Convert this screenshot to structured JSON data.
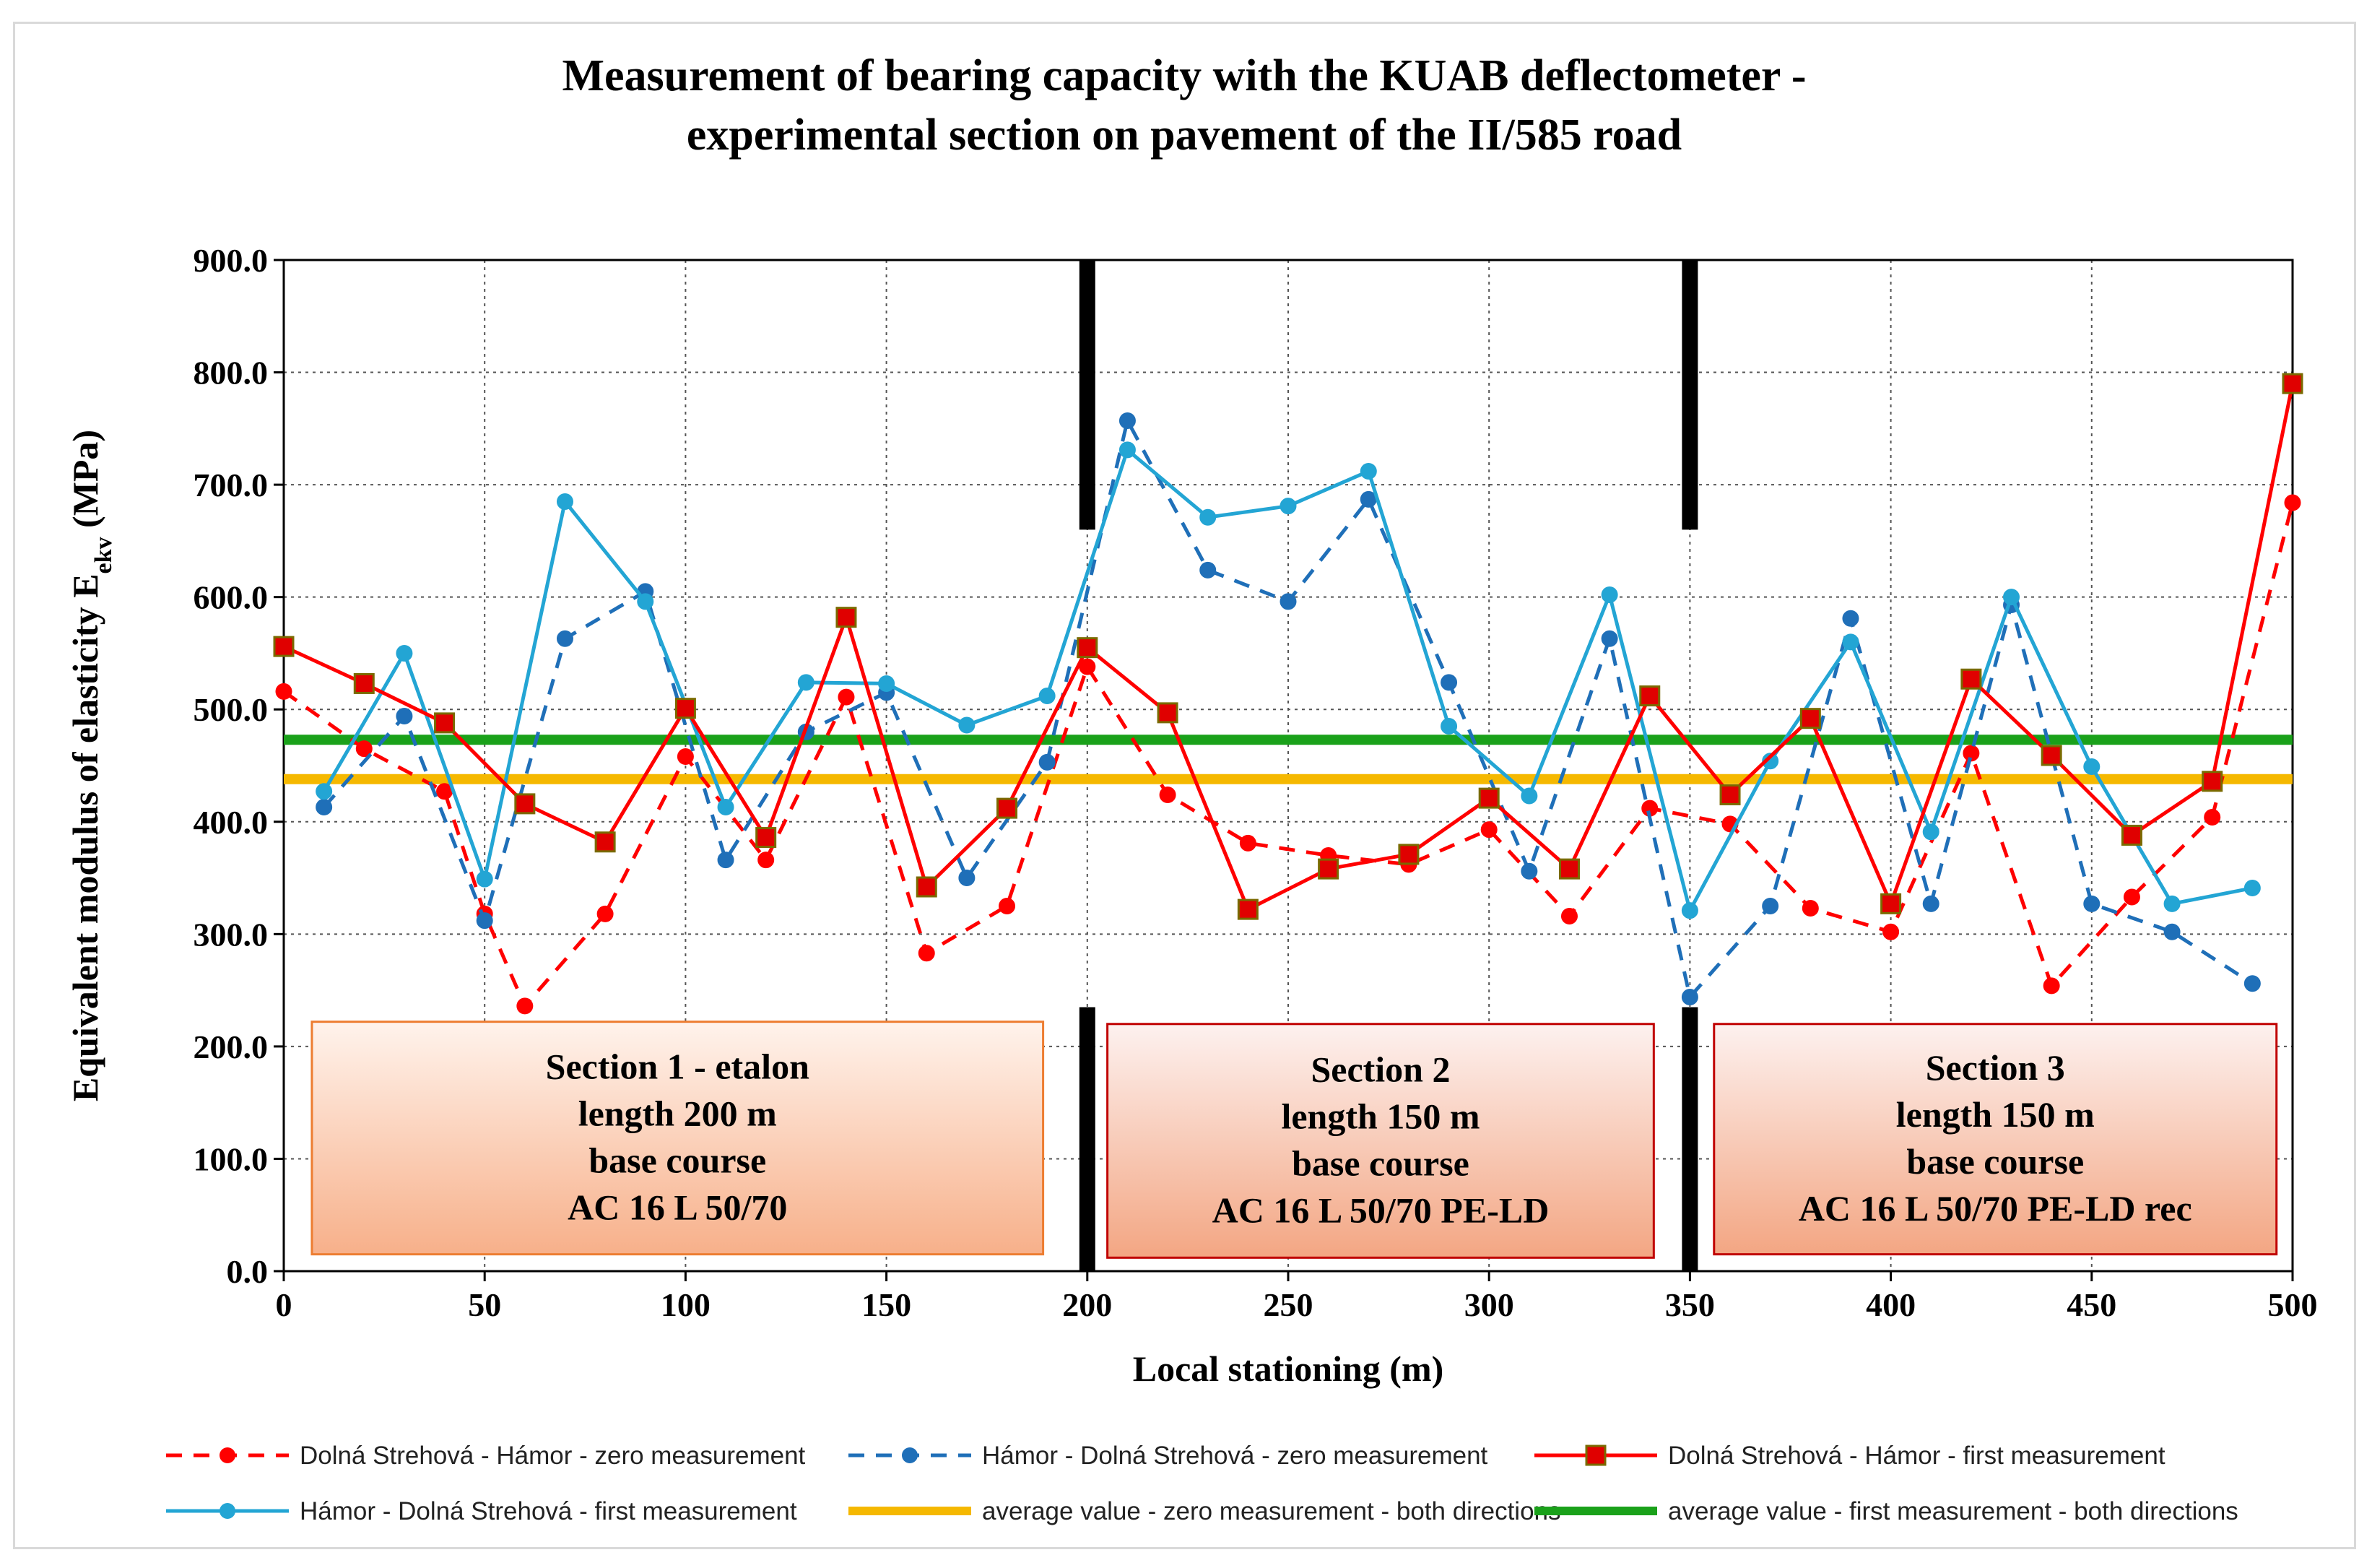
{
  "chart_data": {
    "type": "line",
    "title_lines": [
      "Measurement of bearing capacity with the KUAB deflectometer -",
      "experimental section on pavement of the II/585 road"
    ],
    "xlabel": "Local stationing (m)",
    "ylabel_main": "Equivalent modulus of elasticity E",
    "ylabel_sub": "ekv",
    "ylabel_unit": " (MPa)",
    "xlim": [
      0,
      500
    ],
    "ylim": [
      0,
      900
    ],
    "xticks": [
      "0",
      "50",
      "100",
      "150",
      "200",
      "250",
      "300",
      "350",
      "400",
      "450",
      "500"
    ],
    "yticks": [
      "0.0",
      "100.0",
      "200.0",
      "300.0",
      "400.0",
      "500.0",
      "600.0",
      "700.0",
      "800.0",
      "900.0"
    ],
    "grid": true,
    "series": [
      {
        "name": "Dolná Strehová - Hámor - zero measurement",
        "color": "#ff0000",
        "dash": true,
        "marker": "circle",
        "x": [
          0,
          20,
          40,
          50,
          60,
          80,
          100,
          120,
          140,
          160,
          180,
          200,
          220,
          240,
          260,
          280,
          300,
          320,
          340,
          360,
          380,
          400,
          420,
          440,
          460,
          480,
          500
        ],
        "values": [
          516,
          465,
          427,
          318,
          236,
          318,
          458,
          366,
          511,
          283,
          325,
          538,
          424,
          381,
          370,
          362,
          393,
          316,
          412,
          398,
          323,
          302,
          461,
          254,
          333,
          404,
          684
        ]
      },
      {
        "name": "Hámor - Dolná Strehová - zero measurement",
        "color": "#1f6fb8",
        "dash": true,
        "marker": "circle",
        "x": [
          10,
          30,
          50,
          70,
          90,
          110,
          130,
          150,
          170,
          190,
          210,
          230,
          250,
          270,
          290,
          310,
          330,
          350,
          370,
          390,
          410,
          430,
          450,
          470,
          490
        ],
        "values": [
          413,
          494,
          312,
          563,
          605,
          366,
          480,
          515,
          350,
          453,
          757,
          624,
          596,
          687,
          524,
          356,
          563,
          244,
          325,
          581,
          327,
          593,
          327,
          302,
          256
        ]
      },
      {
        "name": "Dolná Strehová - Hámor - first measurement",
        "color": "#ff0000",
        "dash": false,
        "marker": "square",
        "x": [
          0,
          20,
          40,
          60,
          80,
          100,
          120,
          140,
          160,
          180,
          200,
          220,
          240,
          260,
          280,
          300,
          320,
          340,
          360,
          380,
          400,
          420,
          440,
          460,
          480,
          500
        ],
        "values": [
          556,
          523,
          488,
          416,
          382,
          501,
          386,
          582,
          342,
          412,
          555,
          497,
          322,
          358,
          371,
          421,
          358,
          512,
          424,
          492,
          327,
          527,
          459,
          388,
          436,
          790
        ]
      },
      {
        "name": "Hámor - Dolná Strehová - first measurement",
        "color": "#23a5d4",
        "dash": false,
        "marker": "circle",
        "x": [
          10,
          30,
          50,
          70,
          90,
          110,
          130,
          150,
          170,
          190,
          210,
          230,
          250,
          270,
          290,
          310,
          330,
          350,
          370,
          390,
          410,
          430,
          450,
          470,
          490
        ],
        "values": [
          427,
          550,
          349,
          685,
          596,
          413,
          524,
          523,
          486,
          512,
          731,
          671,
          681,
          712,
          485,
          423,
          602,
          321,
          454,
          560,
          391,
          600,
          449,
          327,
          341
        ]
      },
      {
        "name": "average value - zero measurement - both directions",
        "color": "#f5b800",
        "dash": false,
        "marker": "none",
        "x": [
          0,
          500
        ],
        "values": [
          438,
          438
        ]
      },
      {
        "name": "average value - first measurement - both directions",
        "color": "#1aa11a",
        "dash": false,
        "marker": "none",
        "x": [
          0,
          500
        ],
        "values": [
          473,
          473
        ]
      }
    ],
    "section_dividers_x": [
      200,
      350
    ],
    "section_boxes": [
      {
        "lines": [
          "Section 1 - etalon",
          "length 200 m",
          "base course",
          "AC 16 L  50/70"
        ],
        "x_range": [
          7,
          189
        ],
        "y_top": 222,
        "y_bottom": 15,
        "fill_top": "#fff3ec",
        "fill_bottom": "#f7b08a",
        "border": "#ed7d31"
      },
      {
        "lines": [
          "Section 2",
          "length 150 m",
          "base course",
          "AC 16 L  50/70 PE-LD"
        ],
        "x_range": [
          205,
          341
        ],
        "y_top": 220,
        "y_bottom": 12,
        "fill_top": "#fdf1ef",
        "fill_bottom": "#f3a683",
        "border": "#c00000"
      },
      {
        "lines": [
          "Section 3",
          "length 150 m",
          "base course",
          "AC 16 L  50/70 PE-LD rec"
        ],
        "x_range": [
          356,
          496
        ],
        "y_top": 220,
        "y_bottom": 15,
        "fill_top": "#fdf1ef",
        "fill_bottom": "#f3a683",
        "border": "#c00000"
      }
    ],
    "legend": [
      "Dolná Strehová - Hámor - zero measurement",
      "Hámor - Dolná Strehová - zero measurement",
      "Dolná Strehová - Hámor - first measurement",
      "Hámor - Dolná Strehová - first measurement",
      "average value - zero measurement - both directions",
      "average value - first measurement - both directions"
    ],
    "legend_position": "bottom"
  }
}
